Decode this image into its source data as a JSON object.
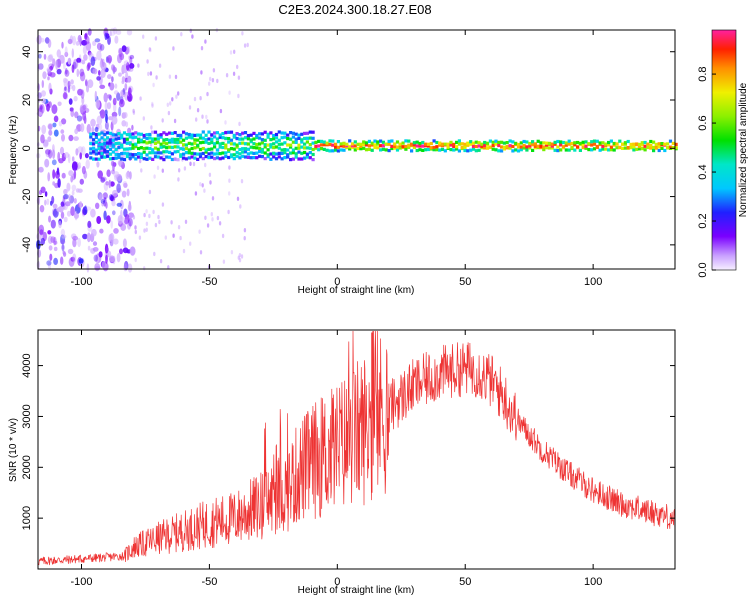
{
  "title": "C2E3.2024.300.18.27.E08",
  "chart_data": [
    {
      "type": "heatmap",
      "xlabel": "Height of straight line (km)",
      "ylabel": "Frequency (Hz)",
      "xlim": [
        -117,
        132
      ],
      "ylim": [
        -50,
        49
      ],
      "x_ticks": [
        "-100",
        "-50",
        "0",
        "50",
        "100"
      ],
      "y_ticks": [
        "-40",
        "-20",
        "0",
        "20",
        "40"
      ],
      "colorbar": {
        "label": "Normalized spectral amplitude",
        "range": [
          0,
          0.98
        ],
        "ticks": [
          "0.0",
          "0.2",
          "0.4",
          "0.6",
          "0.8"
        ]
      },
      "features": {
        "noise_region_x": [
          -117,
          -80
        ],
        "dominant_band_center_hz": 1,
        "dominant_band_halfwidth_hz": [
          6,
          2
        ]
      }
    },
    {
      "type": "line",
      "xlabel": "Height of straight line (km)",
      "ylabel": "SNR (10 * v/v)",
      "xlim": [
        -117,
        132
      ],
      "ylim": [
        0,
        4700
      ],
      "x_ticks": [
        "-100",
        "-50",
        "0",
        "50",
        "100"
      ],
      "y_ticks": [
        "1000",
        "2000",
        "3000",
        "4000"
      ],
      "series": [
        {
          "color": "#ee3333",
          "x": [
            -117,
            -110,
            -100,
            -90,
            -83,
            -80,
            -70,
            -60,
            -50,
            -40,
            -30,
            -20,
            -15,
            -10,
            -5,
            0,
            10,
            20,
            30,
            40,
            50,
            55,
            60,
            65,
            70,
            80,
            90,
            100,
            110,
            120,
            132
          ],
          "y": [
            150,
            170,
            200,
            230,
            260,
            420,
            600,
            750,
            900,
            1000,
            1250,
            1550,
            1900,
            2100,
            2250,
            2400,
            2750,
            3150,
            3600,
            3850,
            3950,
            3900,
            3700,
            3400,
            2950,
            2350,
            1900,
            1550,
            1300,
            1150,
            1000
          ]
        }
      ],
      "annotations": {
        "max_spike": {
          "x": 13.5,
          "y": 4650
        }
      }
    }
  ]
}
